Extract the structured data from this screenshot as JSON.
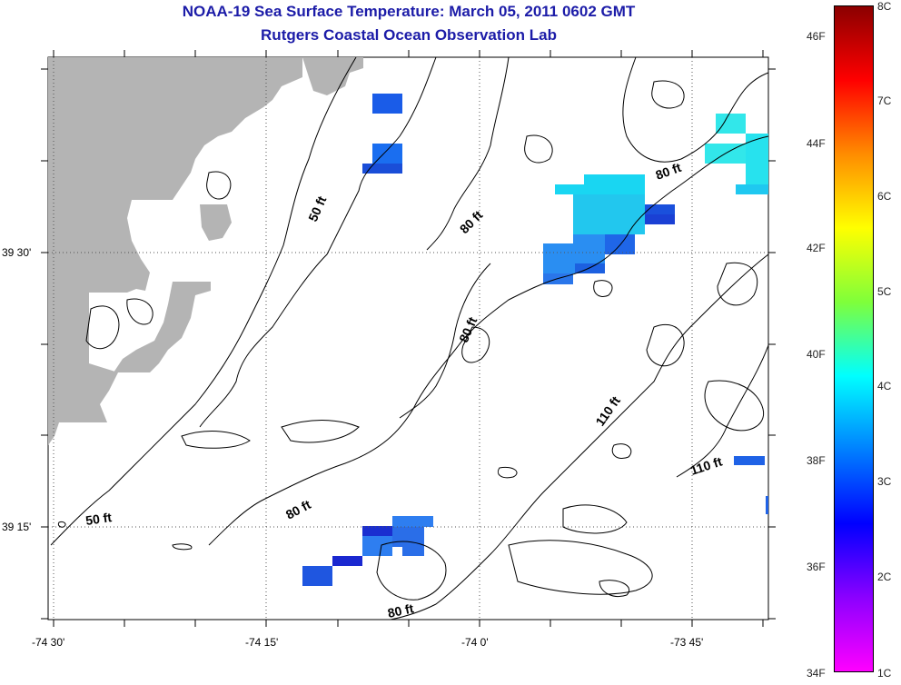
{
  "title": {
    "line1": "NOAA-19 Sea Surface Temperature:  March 05, 2011 0602 GMT",
    "line2": "Rutgers Coastal Ocean Observation Lab"
  },
  "axes": {
    "lat_labels": [
      "39 30'",
      "39 15'"
    ],
    "lon_labels": [
      "-74 30'",
      "-74 15'",
      "-74 0'",
      "-73 45'"
    ]
  },
  "contours": [
    "50 ft",
    "50 ft",
    "80 ft",
    "80 ft",
    "80 ft",
    "80 ft",
    "110 ft",
    "110 ft"
  ],
  "colorbar": {
    "fahrenheit": [
      "46F",
      "44F",
      "42F",
      "40F",
      "38F",
      "36F",
      "34F"
    ],
    "celsius": [
      "8C",
      "7C",
      "6C",
      "5C",
      "4C",
      "3C",
      "2C",
      "1C"
    ],
    "colors": [
      "#8b0000",
      "#ff0000",
      "#ff8c00",
      "#ffff00",
      "#7fff3a",
      "#00ffff",
      "#0080ff",
      "#0000ff",
      "#8b00ff",
      "#ff00ff"
    ]
  },
  "colors": {
    "land": "#b4b4b4",
    "title": "#1c1ca8"
  }
}
